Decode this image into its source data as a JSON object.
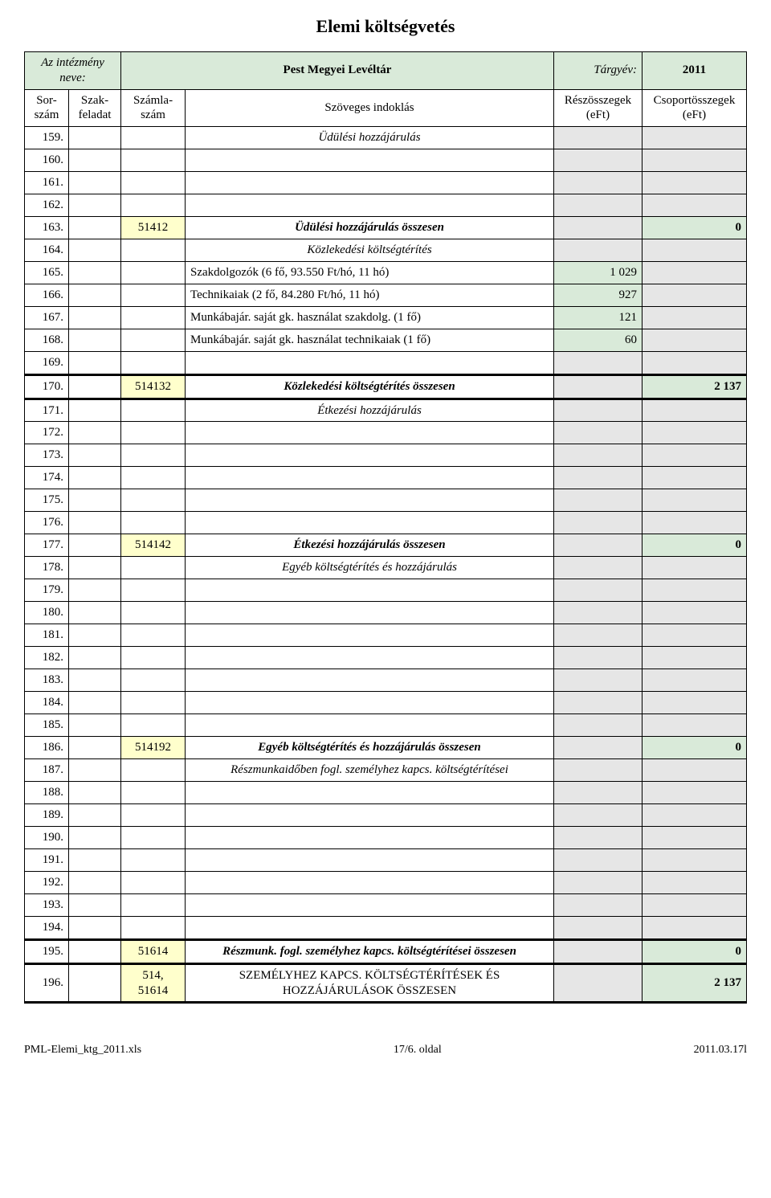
{
  "title": "Elemi költségvetés",
  "header": {
    "inst_label": "Az intézmény neve:",
    "inst_name": "Pest Megyei Levéltár",
    "year_label": "Tárgyév:",
    "year_value": "2011"
  },
  "columns": {
    "sor": "Sor-szám",
    "szak": "Szak-feladat",
    "szamla": "Számla-szám",
    "szoveg": "Szöveges indoklás",
    "resz": "Részösszegek (eFt)",
    "csoport": "Csoportösszegek (eFt)"
  },
  "rows": [
    {
      "n": "159.",
      "sz": "",
      "desc": "Üdülési hozzájárulás",
      "descStyle": "italic center",
      "v1": "",
      "v2": "",
      "v1bg": "gray",
      "v2bg": "gray"
    },
    {
      "n": "160.",
      "sz": "",
      "desc": "",
      "v1": "",
      "v2": "",
      "v1bg": "gray",
      "v2bg": "gray"
    },
    {
      "n": "161.",
      "sz": "",
      "desc": "",
      "v1": "",
      "v2": "",
      "v1bg": "gray",
      "v2bg": "gray"
    },
    {
      "n": "162.",
      "sz": "",
      "desc": "",
      "v1": "",
      "v2": "",
      "v1bg": "gray",
      "v2bg": "gray"
    },
    {
      "n": "163.",
      "sz": "51412",
      "szbg": "yellow",
      "desc": "Üdülési hozzájárulás összesen",
      "descStyle": "bolditalic center",
      "v1": "",
      "v2": "0",
      "v1bg": "gray",
      "v2bg": "green",
      "v2Style": "bold right"
    },
    {
      "n": "164.",
      "sz": "",
      "desc": "Közlekedési költségtérítés",
      "descStyle": "italic center",
      "v1": "",
      "v2": "",
      "v1bg": "gray",
      "v2bg": "gray"
    },
    {
      "n": "165.",
      "sz": "",
      "desc": "Szakdolgozók (6 fő, 93.550 Ft/hó, 11 hó)",
      "descStyle": "left",
      "v1": "1 029",
      "v1bg": "green",
      "v1Style": "right",
      "v2": "",
      "v2bg": "gray"
    },
    {
      "n": "166.",
      "sz": "",
      "desc": "Technikaiak (2 fő, 84.280 Ft/hó, 11 hó)",
      "descStyle": "left",
      "v1": "927",
      "v1bg": "green",
      "v1Style": "right",
      "v2": "",
      "v2bg": "gray"
    },
    {
      "n": "167.",
      "sz": "",
      "desc": "Munkábajár. saját gk. használat szakdolg. (1 fő)",
      "descStyle": "left",
      "v1": "121",
      "v1bg": "green",
      "v1Style": "right",
      "v2": "",
      "v2bg": "gray"
    },
    {
      "n": "168.",
      "sz": "",
      "desc": "Munkábajár. saját gk. használat technikaiak (1 fő)",
      "descStyle": "left",
      "v1": "60",
      "v1bg": "green",
      "v1Style": "right",
      "v2": "",
      "v2bg": "gray"
    },
    {
      "n": "169.",
      "sz": "",
      "desc": "",
      "v1": "",
      "v2": "",
      "v1bg": "gray",
      "v2bg": "gray"
    },
    {
      "n": "170.",
      "sz": "514132",
      "szbg": "yellow",
      "desc": "Közlekedési költségtérítés összesen",
      "descStyle": "bolditalic center",
      "v1": "",
      "v2": "2 137",
      "v1bg": "gray",
      "v2bg": "green",
      "v2Style": "bold right",
      "thick": true
    },
    {
      "n": "171.",
      "sz": "",
      "desc": "Étkezési hozzájárulás",
      "descStyle": "italic center",
      "v1": "",
      "v2": "",
      "v1bg": "gray",
      "v2bg": "gray"
    },
    {
      "n": "172.",
      "sz": "",
      "desc": "",
      "v1": "",
      "v2": "",
      "v1bg": "gray",
      "v2bg": "gray"
    },
    {
      "n": "173.",
      "sz": "",
      "desc": "",
      "v1": "",
      "v2": "",
      "v1bg": "gray",
      "v2bg": "gray"
    },
    {
      "n": "174.",
      "sz": "",
      "desc": "",
      "v1": "",
      "v2": "",
      "v1bg": "gray",
      "v2bg": "gray"
    },
    {
      "n": "175.",
      "sz": "",
      "desc": "",
      "v1": "",
      "v2": "",
      "v1bg": "gray",
      "v2bg": "gray"
    },
    {
      "n": "176.",
      "sz": "",
      "desc": "",
      "v1": "",
      "v2": "",
      "v1bg": "gray",
      "v2bg": "gray"
    },
    {
      "n": "177.",
      "sz": "514142",
      "szbg": "yellow",
      "desc": "Étkezési hozzájárulás összesen",
      "descStyle": "bolditalic center",
      "v1": "",
      "v2": "0",
      "v1bg": "gray",
      "v2bg": "green",
      "v2Style": "bold right"
    },
    {
      "n": "178.",
      "sz": "",
      "desc": "Egyéb költségtérítés és hozzájárulás",
      "descStyle": "italic center",
      "v1": "",
      "v2": "",
      "v1bg": "gray",
      "v2bg": "gray"
    },
    {
      "n": "179.",
      "sz": "",
      "desc": "",
      "v1": "",
      "v2": "",
      "v1bg": "gray",
      "v2bg": "gray"
    },
    {
      "n": "180.",
      "sz": "",
      "desc": "",
      "v1": "",
      "v2": "",
      "v1bg": "gray",
      "v2bg": "gray"
    },
    {
      "n": "181.",
      "sz": "",
      "desc": "",
      "v1": "",
      "v2": "",
      "v1bg": "gray",
      "v2bg": "gray"
    },
    {
      "n": "182.",
      "sz": "",
      "desc": "",
      "v1": "",
      "v2": "",
      "v1bg": "gray",
      "v2bg": "gray"
    },
    {
      "n": "183.",
      "sz": "",
      "desc": "",
      "v1": "",
      "v2": "",
      "v1bg": "gray",
      "v2bg": "gray"
    },
    {
      "n": "184.",
      "sz": "",
      "desc": "",
      "v1": "",
      "v2": "",
      "v1bg": "gray",
      "v2bg": "gray"
    },
    {
      "n": "185.",
      "sz": "",
      "desc": "",
      "v1": "",
      "v2": "",
      "v1bg": "gray",
      "v2bg": "gray"
    },
    {
      "n": "186.",
      "sz": "514192",
      "szbg": "yellow",
      "desc": "Egyéb költségtérítés és hozzájárulás összesen",
      "descStyle": "bolditalic center",
      "v1": "",
      "v2": "0",
      "v1bg": "gray",
      "v2bg": "green",
      "v2Style": "bold right"
    },
    {
      "n": "187.",
      "sz": "",
      "desc": "Részmunkaidőben fogl. személyhez kapcs. költségtérítései",
      "descStyle": "italic center",
      "v1": "",
      "v2": "",
      "v1bg": "gray",
      "v2bg": "gray"
    },
    {
      "n": "188.",
      "sz": "",
      "desc": "",
      "v1": "",
      "v2": "",
      "v1bg": "gray",
      "v2bg": "gray"
    },
    {
      "n": "189.",
      "sz": "",
      "desc": "",
      "v1": "",
      "v2": "",
      "v1bg": "gray",
      "v2bg": "gray"
    },
    {
      "n": "190.",
      "sz": "",
      "desc": "",
      "v1": "",
      "v2": "",
      "v1bg": "gray",
      "v2bg": "gray"
    },
    {
      "n": "191.",
      "sz": "",
      "desc": "",
      "v1": "",
      "v2": "",
      "v1bg": "gray",
      "v2bg": "gray"
    },
    {
      "n": "192.",
      "sz": "",
      "desc": "",
      "v1": "",
      "v2": "",
      "v1bg": "gray",
      "v2bg": "gray"
    },
    {
      "n": "193.",
      "sz": "",
      "desc": "",
      "v1": "",
      "v2": "",
      "v1bg": "gray",
      "v2bg": "gray"
    },
    {
      "n": "194.",
      "sz": "",
      "desc": "",
      "v1": "",
      "v2": "",
      "v1bg": "gray",
      "v2bg": "gray"
    },
    {
      "n": "195.",
      "sz": "51614",
      "szbg": "yellow",
      "desc": "Részmunk. fogl. személyhez kapcs. költségtérítései összesen",
      "descStyle": "bolditalic center",
      "v1": "",
      "v2": "0",
      "v1bg": "gray",
      "v2bg": "green",
      "v2Style": "bold right",
      "thick": true
    },
    {
      "n": "196.",
      "sz": "514, 51614",
      "szbg": "yellow",
      "desc": "SZEMÉLYHEZ KAPCS. KÖLTSÉGTÉRÍTÉSEK ÉS HOZZÁJÁRULÁSOK ÖSSZESEN",
      "descStyle": "center",
      "v1": "",
      "v2": "2 137",
      "v1bg": "gray",
      "v2bg": "green",
      "v2Style": "bold right",
      "thick": true
    }
  ],
  "footer": {
    "left": "PML-Elemi_ktg_2011.xls",
    "center": "17/6. oldal",
    "right": "2011.03.17l"
  },
  "colwidths": {
    "sor": 55,
    "szak": 65,
    "szamla": 80,
    "szoveg": 460,
    "resz": 110,
    "csoport": 130
  },
  "colors": {
    "green": "#d9ead9",
    "yellow": "#ffffcc",
    "gray": "#e6e6e6",
    "text": "#000000",
    "bg": "#ffffff"
  }
}
